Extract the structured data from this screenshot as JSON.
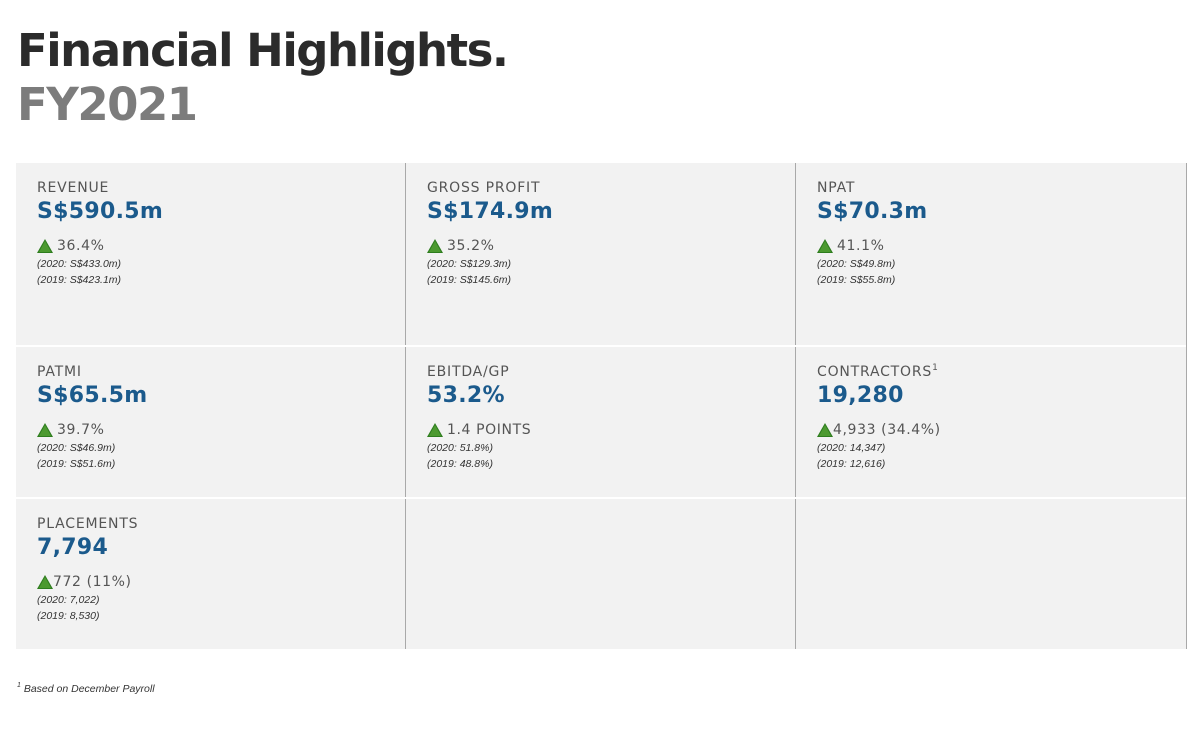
{
  "header": {
    "title": "Financial Highlights.",
    "subtitle": "FY2021"
  },
  "colors": {
    "value": "#1b5a8c",
    "label": "#555555",
    "up_arrow": "#2e7d1e",
    "panel_bg": "#f2f2f2"
  },
  "icons": {
    "change_indicator": "up-triangle-icon"
  },
  "metrics": [
    {
      "label": "REVENUE",
      "footnote_mark": "",
      "value": "S$590.5m",
      "change": "36.4%",
      "cmp_2020": "(2020: S$433.0m)",
      "cmp_2019": "(2019: S$423.1m)"
    },
    {
      "label": "GROSS PROFIT",
      "footnote_mark": "",
      "value": "S$174.9m",
      "change": "35.2%",
      "cmp_2020": "(2020: S$129.3m)",
      "cmp_2019": "(2019: S$145.6m)"
    },
    {
      "label": "NPAT",
      "footnote_mark": "",
      "value": "S$70.3m",
      "change": "41.1%",
      "cmp_2020": "(2020: S$49.8m)",
      "cmp_2019": "(2019: S$55.8m)"
    },
    {
      "label": "PATMI",
      "footnote_mark": "",
      "value": "S$65.5m",
      "change": "39.7%",
      "cmp_2020": "(2020: S$46.9m)",
      "cmp_2019": "(2019: S$51.6m)"
    },
    {
      "label": "EBITDA/GP",
      "footnote_mark": "",
      "value": "53.2%",
      "change": "1.4 POINTS",
      "cmp_2020": "(2020: 51.8%)",
      "cmp_2019": "(2019: 48.8%)"
    },
    {
      "label": "CONTRACTORS",
      "footnote_mark": "1",
      "value": "19,280",
      "change": "4,933 (34.4%)",
      "cmp_2020": "(2020: 14,347)",
      "cmp_2019": "(2019: 12,616)"
    },
    {
      "label": "PLACEMENTS",
      "footnote_mark": "",
      "value": "7,794",
      "change": "772 (11%)",
      "cmp_2020": "(2020: 7,022)",
      "cmp_2019": "(2019: 8,530)"
    }
  ],
  "footnote": {
    "mark": "1",
    "text": "Based on December Payroll"
  }
}
